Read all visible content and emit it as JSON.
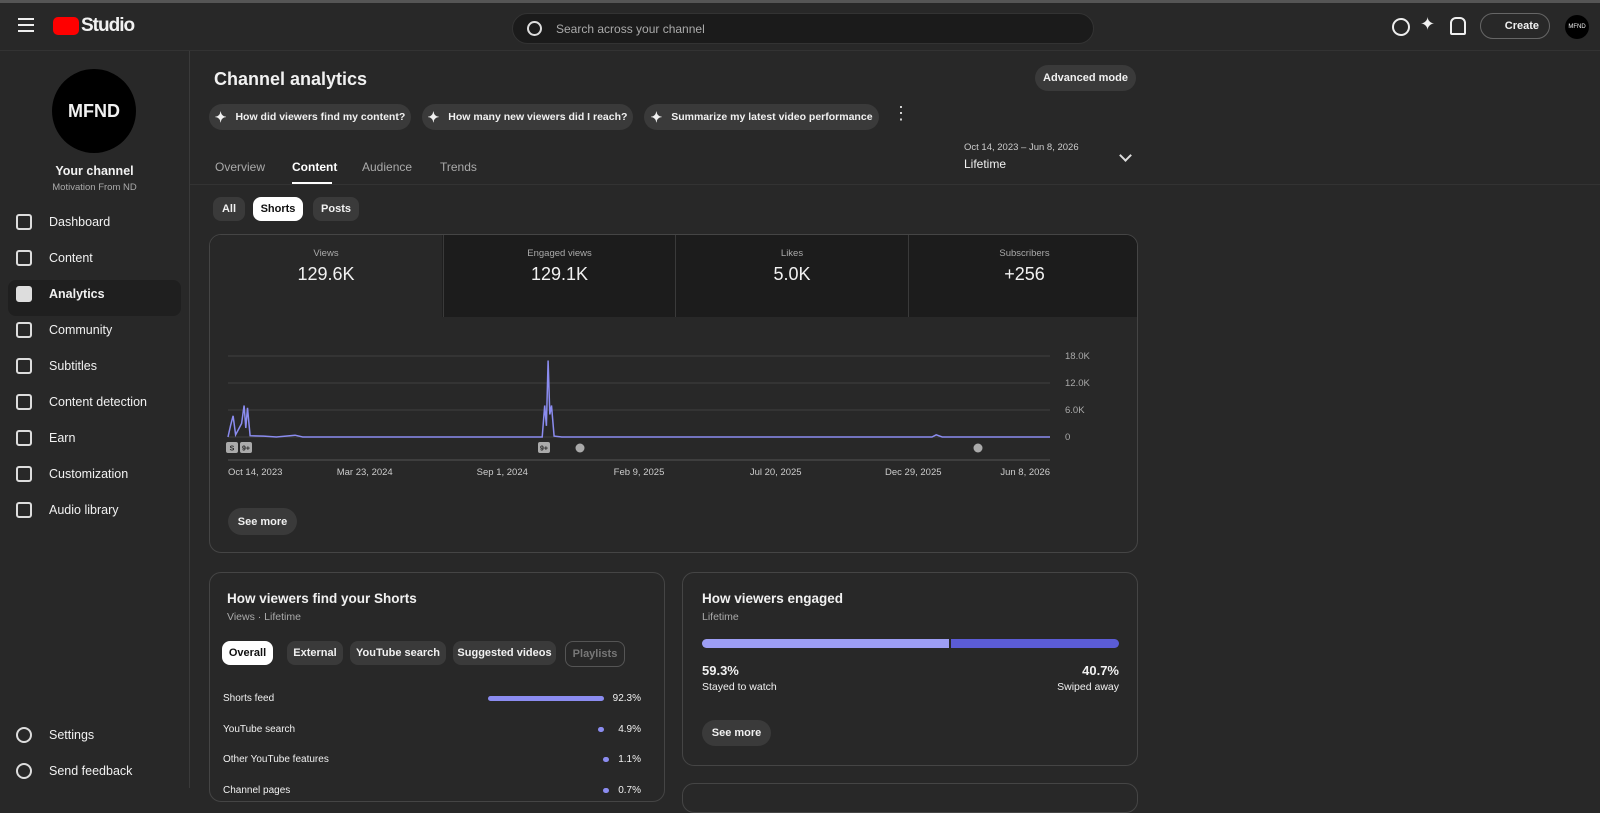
{
  "header": {
    "logo": "Studio",
    "search_placeholder": "Search across your channel",
    "create": "Create",
    "avatar": "MFND"
  },
  "sidebar": {
    "avatar": "MFND",
    "channel_title": "Your channel",
    "channel_name": "Motivation From ND",
    "nav": [
      "Dashboard",
      "Content",
      "Analytics",
      "Community",
      "Subtitles",
      "Content detection",
      "Earn",
      "Customization",
      "Audio library"
    ],
    "bottom": [
      "Settings",
      "Send feedback"
    ]
  },
  "main": {
    "title": "Channel analytics",
    "advanced": "Advanced mode",
    "prompts": [
      "How did viewers find my content?",
      "How many new viewers did I reach?",
      "Summarize my latest video performance"
    ],
    "tabs": [
      "Overview",
      "Content",
      "Audience",
      "Trends"
    ],
    "date_range": "Oct 14, 2023 – Jun 8, 2026",
    "period": "Lifetime",
    "filters": [
      "All",
      "Shorts",
      "Posts"
    ],
    "metrics": [
      {
        "label": "Views",
        "value": "129.6K"
      },
      {
        "label": "Engaged views",
        "value": "129.1K"
      },
      {
        "label": "Likes",
        "value": "5.0K"
      },
      {
        "label": "Subscribers",
        "value": "+256"
      }
    ],
    "see_more": "See more"
  },
  "chart_data": {
    "type": "line",
    "color": "#8b8cf0",
    "x": [
      "2023-10-14",
      "2023-10-17",
      "2023-10-20",
      "2023-10-23",
      "2023-10-30",
      "2023-11-02",
      "2023-11-04",
      "2023-11-06",
      "2023-11-09",
      "2023-11-25",
      "2023-12-10",
      "2024-01-01",
      "2024-01-10",
      "2024-10-18",
      "2024-10-21",
      "2024-10-23",
      "2024-10-25",
      "2024-10-27",
      "2024-10-29",
      "2024-11-01",
      "2024-11-10",
      "2026-01-20",
      "2026-01-25",
      "2026-02-01",
      "2026-06-08"
    ],
    "values": [
      0,
      2500,
      4700,
      500,
      3000,
      7000,
      2000,
      6500,
      300,
      200,
      0,
      400,
      0,
      0,
      7000,
      2500,
      17000,
      5000,
      7000,
      200,
      0,
      0,
      500,
      0,
      0
    ],
    "xlim": [
      "2023-10-14",
      "2026-06-08"
    ],
    "xticks": [
      {
        "value": "2023-10-14",
        "label": "Oct 14, 2023"
      },
      {
        "value": "2024-03-23",
        "label": "Mar 23, 2024"
      },
      {
        "value": "2024-09-01",
        "label": "Sep 1, 2024"
      },
      {
        "value": "2025-02-09",
        "label": "Feb 9, 2025"
      },
      {
        "value": "2025-07-20",
        "label": "Jul 20, 2025"
      },
      {
        "value": "2025-12-29",
        "label": "Dec 29, 2025"
      },
      {
        "value": "2026-06-08",
        "label": "Jun 8, 2026"
      }
    ],
    "ylim": [
      0,
      18000
    ],
    "yticks": [
      0,
      {
        "value": 6000,
        "label": "6.0K"
      },
      {
        "value": 12000,
        "label": "12.0K"
      },
      {
        "value": 18000,
        "label": "18.0K"
      }
    ],
    "grid": true,
    "badges": [
      "S",
      "9+",
      "9+"
    ]
  },
  "traffic": {
    "title": "How viewers find your Shorts",
    "subtitle": "Views · Lifetime",
    "chips": [
      "Overall",
      "External",
      "YouTube search",
      "Suggested videos",
      "Playlists"
    ],
    "rows": [
      {
        "name": "Shorts feed",
        "value": 92.3,
        "label": "92.3%"
      },
      {
        "name": "YouTube search",
        "value": 4.9,
        "label": "4.9%"
      },
      {
        "name": "Other YouTube features",
        "value": 1.1,
        "label": "1.1%"
      },
      {
        "name": "Channel pages",
        "value": 0.7,
        "label": "0.7%"
      }
    ]
  },
  "engaged": {
    "title": "How viewers engaged",
    "subtitle": "Lifetime",
    "stayed": {
      "value": 59.3,
      "label": "59.3%",
      "name": "Stayed to watch"
    },
    "swiped": {
      "value": 40.7,
      "label": "40.7%",
      "name": "Swiped away"
    },
    "see_more": "See more"
  }
}
